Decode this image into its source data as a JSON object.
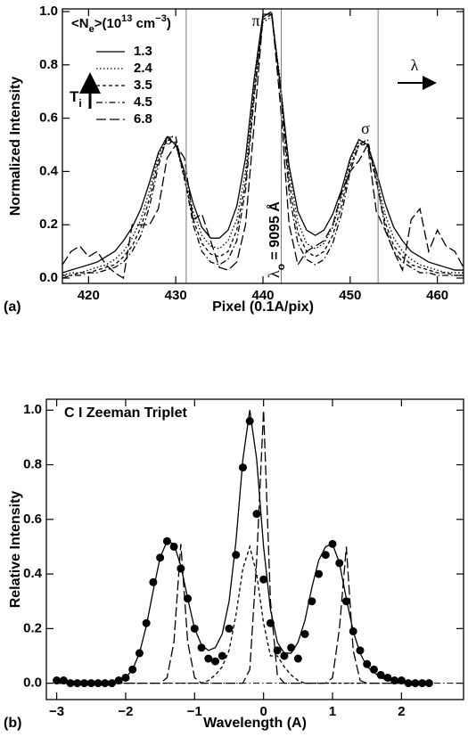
{
  "chart_data": [
    {
      "type": "line",
      "panel_label": "(a)",
      "xlabel": "Pixel (0.1A/pix)",
      "ylabel": "Normalized Intensity",
      "x": [
        417,
        418,
        419,
        420,
        421,
        422,
        423,
        424,
        425,
        426,
        427,
        428,
        429,
        430,
        431,
        432,
        433,
        434,
        435,
        436,
        437,
        438,
        439,
        440,
        441,
        442,
        443,
        444,
        445,
        446,
        447,
        448,
        449,
        450,
        451,
        452,
        453,
        454,
        455,
        456,
        457,
        458,
        459,
        460,
        461,
        462,
        463
      ],
      "xlim": [
        417,
        463
      ],
      "xticks": [
        420,
        430,
        440,
        450,
        460
      ],
      "ylim": [
        -0.02,
        1.01
      ],
      "yticks": [
        {
          "value": 0,
          "label": "0.0"
        },
        {
          "value": 0.2,
          "label": "0.2"
        },
        {
          "value": 0.4,
          "label": "0.4"
        },
        {
          "value": 0.6,
          "label": "0.6"
        },
        {
          "value": 0.8,
          "label": "0.8"
        },
        {
          "value": 1,
          "label": "1.0"
        }
      ],
      "legend_title": [
        "<N",
        "e",
        ">(10",
        "13",
        " cm",
        "−3",
        ")"
      ],
      "legend_loc": "upper left",
      "series": [
        {
          "name": "1.3",
          "dash": "solid",
          "color": "#000000",
          "values": [
            0.02,
            0.03,
            0.04,
            0.05,
            0.06,
            0.08,
            0.1,
            0.14,
            0.19,
            0.26,
            0.36,
            0.47,
            0.53,
            0.5,
            0.4,
            0.28,
            0.19,
            0.15,
            0.15,
            0.18,
            0.27,
            0.45,
            0.75,
            0.99,
            0.99,
            0.72,
            0.42,
            0.25,
            0.18,
            0.16,
            0.18,
            0.24,
            0.33,
            0.45,
            0.52,
            0.5,
            0.4,
            0.28,
            0.19,
            0.14,
            0.1,
            0.08,
            0.06,
            0.05,
            0.04,
            0.03,
            0.03
          ]
        },
        {
          "name": "2.4",
          "dash": "dotted",
          "color": "#000000",
          "values": [
            0.01,
            0.02,
            0.02,
            0.03,
            0.04,
            0.05,
            0.07,
            0.1,
            0.15,
            0.22,
            0.33,
            0.46,
            0.52,
            0.5,
            0.38,
            0.25,
            0.16,
            0.12,
            0.11,
            0.14,
            0.22,
            0.4,
            0.72,
            0.96,
            0.98,
            0.74,
            0.4,
            0.21,
            0.13,
            0.11,
            0.13,
            0.19,
            0.3,
            0.44,
            0.51,
            0.5,
            0.38,
            0.24,
            0.15,
            0.1,
            0.07,
            0.05,
            0.04,
            0.03,
            0.02,
            0.02,
            0.02
          ]
        },
        {
          "name": "3.5",
          "dash": "dashed",
          "color": "#000000",
          "values": [
            0.01,
            0.01,
            0.02,
            0.02,
            0.03,
            0.04,
            0.05,
            0.08,
            0.12,
            0.19,
            0.3,
            0.44,
            0.52,
            0.51,
            0.37,
            0.22,
            0.13,
            0.09,
            0.08,
            0.1,
            0.18,
            0.36,
            0.7,
            0.97,
            0.99,
            0.72,
            0.36,
            0.17,
            0.1,
            0.08,
            0.1,
            0.16,
            0.27,
            0.42,
            0.5,
            0.5,
            0.36,
            0.21,
            0.12,
            0.08,
            0.05,
            0.04,
            0.03,
            0.02,
            0.02,
            0.01,
            0.01
          ]
        },
        {
          "name": "4.5",
          "dash": "dashdot",
          "color": "#000000",
          "values": [
            0,
            0.01,
            0.01,
            0.02,
            0.02,
            0.03,
            0.04,
            0.06,
            0.1,
            0.16,
            0.27,
            0.42,
            0.53,
            0.53,
            0.38,
            0.2,
            0.1,
            0.06,
            0.05,
            0.07,
            0.14,
            0.33,
            0.68,
            0.98,
            1.0,
            0.7,
            0.32,
            0.13,
            0.07,
            0.05,
            0.07,
            0.13,
            0.24,
            0.4,
            0.5,
            0.52,
            0.37,
            0.19,
            0.1,
            0.06,
            0.04,
            0.02,
            0.02,
            0.01,
            0.01,
            0.01,
            0.01
          ]
        },
        {
          "name": "6.8",
          "dash": "longdash",
          "color": "#000000",
          "values": [
            0.05,
            0.1,
            0.12,
            0.08,
            0.1,
            0.05,
            0.02,
            0,
            0.2,
            0.2,
            0.2,
            0.26,
            0.45,
            0.5,
            0.45,
            0.22,
            0.24,
            0.14,
            0.04,
            0.03,
            0.06,
            0.2,
            0.58,
            0.98,
            1.0,
            0.65,
            0.2,
            0.05,
            0.1,
            0.12,
            0.14,
            0.2,
            0.32,
            0.4,
            0.44,
            0.5,
            0.25,
            0.18,
            0.1,
            0.03,
            0.22,
            0.26,
            0.1,
            0.18,
            0.12,
            0.1,
            0.04
          ]
        }
      ],
      "vlines": [
        431.2,
        442.1,
        453.2
      ],
      "annotations": {
        "pi": "π",
        "sigma": [
          "σ",
          "σ"
        ],
        "lambda": "λ",
        "ti": [
          "T",
          "i"
        ],
        "lambda0": [
          "λ",
          "o",
          " = 9095 Å"
        ]
      }
    },
    {
      "type": "line",
      "panel_label": "(b)",
      "title": "C I Zeeman Triplet",
      "xlabel": "Wavelength (A)",
      "ylabel": "Relative Intensity",
      "x": [
        -3,
        -2.9,
        -2.8,
        -2.7,
        -2.6,
        -2.5,
        -2.4,
        -2.3,
        -2.2,
        -2.1,
        -2,
        -1.9,
        -1.8,
        -1.7,
        -1.6,
        -1.5,
        -1.4,
        -1.3,
        -1.2,
        -1.1,
        -1,
        -0.9,
        -0.8,
        -0.7,
        -0.6,
        -0.5,
        -0.4,
        -0.3,
        -0.2,
        -0.1,
        0,
        0.1,
        0.2,
        0.3,
        0.4,
        0.5,
        0.6,
        0.7,
        0.8,
        0.9,
        1,
        1.1,
        1.2,
        1.3,
        1.4,
        1.5,
        1.6,
        1.7,
        1.8,
        1.9,
        2,
        2.1,
        2.2,
        2.3,
        2.4
      ],
      "xlim": [
        -3.15,
        2.9
      ],
      "xticks": [
        {
          "value": -3,
          "label": "−3"
        },
        {
          "value": -2,
          "label": "−2"
        },
        {
          "value": -1,
          "label": "−1"
        },
        0,
        1,
        2
      ],
      "ylim": [
        -0.06,
        1.04
      ],
      "yticks": [
        {
          "value": 0,
          "label": "0.0"
        },
        {
          "value": 0.2,
          "label": "0.2"
        },
        {
          "value": 0.4,
          "label": "0.4"
        },
        {
          "value": 0.6,
          "label": "0.6"
        },
        {
          "value": 0.8,
          "label": "0.8"
        },
        {
          "value": 1,
          "label": "1.0"
        }
      ],
      "series": [
        {
          "dash": "dashed",
          "color": "#000000",
          "values": [
            0,
            0,
            0,
            0,
            0,
            0,
            0,
            0,
            0,
            0,
            0,
            0,
            0,
            0,
            0,
            0,
            0,
            0,
            0,
            0,
            0,
            0,
            0.01,
            0.03,
            0.06,
            0.12,
            0.25,
            0.42,
            0.5,
            0.4,
            0.22,
            0.1,
            0.1,
            0.06,
            0.03,
            0.01,
            0,
            0,
            0,
            0,
            0,
            0,
            0,
            0,
            0,
            0,
            0,
            0,
            0,
            0,
            0,
            0,
            0,
            0,
            0
          ]
        },
        {
          "dash": "longdash",
          "color": "#000000",
          "values": [
            0,
            0,
            0,
            0,
            0,
            0,
            0,
            0,
            0,
            0,
            0,
            0,
            0,
            0,
            0,
            0,
            0.02,
            0.15,
            0.51,
            0.15,
            0.02,
            0,
            0,
            0,
            0,
            0,
            0,
            0,
            0.05,
            0.45,
            1.0,
            0.3,
            0.03,
            0,
            0,
            0,
            0,
            0,
            0,
            0,
            0.02,
            0.2,
            0.5,
            0.12,
            0.01,
            0,
            0,
            0,
            0,
            0,
            0,
            0,
            0,
            0,
            0
          ]
        },
        {
          "dash": "solid",
          "color": "#000000",
          "values": [
            0,
            0,
            0,
            0,
            0,
            0,
            0,
            0,
            0,
            0.01,
            0.02,
            0.05,
            0.11,
            0.21,
            0.34,
            0.46,
            0.52,
            0.51,
            0.43,
            0.31,
            0.2,
            0.14,
            0.12,
            0.13,
            0.18,
            0.3,
            0.52,
            0.82,
            1.0,
            0.82,
            0.5,
            0.27,
            0.15,
            0.11,
            0.11,
            0.15,
            0.23,
            0.35,
            0.45,
            0.5,
            0.51,
            0.44,
            0.31,
            0.19,
            0.11,
            0.06,
            0.04,
            0.02,
            0.01,
            0.01,
            0,
            0,
            0,
            0,
            0
          ]
        },
        {
          "marker": "circle",
          "color": "#000000",
          "values": [
            0.01,
            0.01,
            0,
            0,
            0,
            0,
            0,
            0,
            0,
            0.01,
            0.02,
            0.05,
            0.11,
            0.22,
            0.37,
            0.46,
            0.52,
            0.5,
            0.42,
            0.31,
            0.2,
            0.13,
            0.09,
            0.08,
            0.1,
            0.2,
            0.47,
            0.79,
            0.96,
            0.62,
            0.38,
            0.22,
            0.12,
            0.1,
            0.13,
            0.09,
            0.18,
            0.3,
            0.4,
            0.47,
            0.51,
            0.44,
            0.3,
            0.19,
            0.12,
            0.07,
            0.05,
            0.03,
            0.02,
            0.01,
            0.01,
            0,
            0,
            0,
            0
          ]
        }
      ]
    }
  ]
}
